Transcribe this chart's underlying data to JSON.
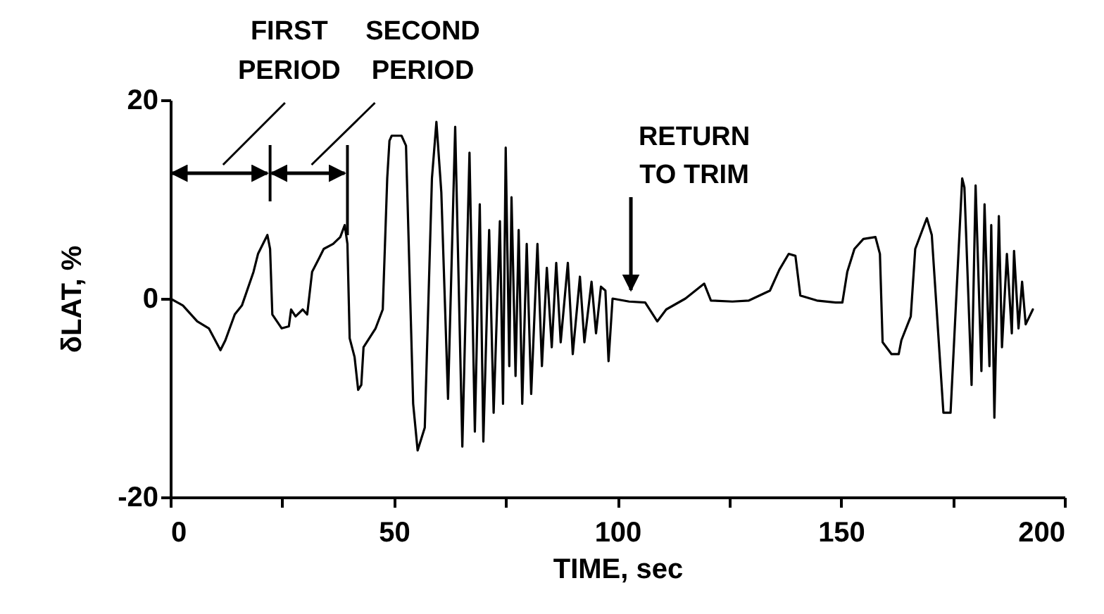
{
  "chart_data": {
    "type": "line",
    "xlabel": "TIME, sec",
    "ylabel": "δLAT, %",
    "xlim": [
      0,
      200
    ],
    "ylim": [
      -20,
      20
    ],
    "xticks": [
      0,
      {
        "value": 25,
        "label": null
      },
      50,
      {
        "value": 75,
        "label": null
      },
      100,
      {
        "value": 125,
        "label": null
      },
      150,
      {
        "value": 175,
        "label": null
      },
      200
    ],
    "yticks": [
      -20,
      0,
      20
    ],
    "grid": false,
    "legend": false,
    "marker": "none",
    "line_style": "solid",
    "ref_lines": [
      {
        "axis": "x",
        "value": 22.3,
        "label": "FIRST PERIOD"
      },
      {
        "axis": "x",
        "value": 39.6,
        "label": "SECOND PERIOD"
      }
    ],
    "annotations": [
      {
        "text": "RETURN TO TRIM",
        "x": 103,
        "y": 0
      }
    ],
    "series": [
      {
        "color": "#000000",
        "x": [
          0,
          2.8,
          6,
          8.6,
          11.2,
          12.3,
          14.4,
          16,
          18.6,
          19.6,
          21.7,
          22.3,
          22.8,
          24.9,
          26.5,
          27,
          28,
          29.6,
          30.6,
          31.7,
          33.3,
          34.3,
          36.4,
          38,
          39,
          39.6,
          40.1,
          41.2,
          42,
          42.7,
          43.2,
          45.9,
          47.5,
          48.5,
          49,
          49.5,
          51.7,
          52.7,
          54.3,
          55.3,
          56.9,
          58.5,
          59.5,
          60.6,
          62.1,
          63.7,
          65.3,
          66.9,
          68.1,
          69.2,
          70,
          71.3,
          72.3,
          73.7,
          74.4,
          75,
          75.8,
          76.3,
          77.2,
          77.9,
          78.7,
          79.7,
          80.7,
          82.1,
          83.1,
          84.2,
          85.3,
          86.3,
          87.3,
          88.9,
          90,
          91.6,
          92.6,
          94.2,
          95.2,
          96.3,
          97.3,
          98,
          98.9,
          102.6,
          106.2,
          108.9,
          110.9,
          115.2,
          119.4,
          120.9,
          125.7,
          129.4,
          134.1,
          136.2,
          138.3,
          139.8,
          140.9,
          144.6,
          148.8,
          150.3,
          151.4,
          153,
          155,
          157.7,
          158.7,
          159.3,
          161.3,
          162.9,
          163.5,
          165.6,
          166.6,
          169.2,
          170.3,
          172.9,
          174.5,
          177.1,
          177.6,
          179.2,
          180.1,
          181.4,
          182.1,
          183.2,
          183.6,
          184.3,
          185.3,
          186,
          187.1,
          188.2,
          188.7,
          189.7,
          190.5,
          191.3,
          192.9
        ],
        "values": [
          0,
          -0.7,
          -2.3,
          -3,
          -5.2,
          -4.2,
          -1.6,
          -0.7,
          2.7,
          4.5,
          6.4,
          5,
          -1.6,
          -3,
          -2.8,
          -1.1,
          -1.8,
          -1.1,
          -1.6,
          2.7,
          4.1,
          5,
          5.5,
          6.2,
          7.4,
          5.5,
          -4,
          -5.9,
          -9.2,
          -8.7,
          -4.9,
          -3,
          -1.1,
          12.1,
          15.9,
          16.4,
          16.4,
          15.4,
          -10.6,
          -15.3,
          -13,
          12.1,
          17.8,
          10.7,
          -10.1,
          17.3,
          -14.9,
          14.7,
          -13.4,
          9.5,
          -14.4,
          6.9,
          -11.5,
          7.8,
          -10.6,
          15.2,
          -6.8,
          10.2,
          -7.8,
          6.9,
          -10.6,
          5.5,
          -9.6,
          5.5,
          -6.8,
          3.1,
          -4.9,
          3.6,
          -4.4,
          3.6,
          -5.6,
          2.2,
          -4.4,
          1.7,
          -3.5,
          1.2,
          0.8,
          -6.3,
          0,
          -0.3,
          -0.4,
          -2.3,
          -1.1,
          0,
          1.5,
          -0.2,
          -0.3,
          -0.2,
          0.8,
          2.9,
          4.5,
          4.3,
          0.3,
          -0.2,
          -0.4,
          -0.4,
          2.7,
          5,
          6,
          6.2,
          4.5,
          -4.4,
          -5.6,
          -5.6,
          -4.2,
          -1.8,
          5,
          8.1,
          6.4,
          -11.5,
          -11.5,
          12.1,
          11.2,
          -8.7,
          11.4,
          -7.3,
          9.5,
          -6.8,
          7.4,
          -12,
          8.3,
          -4.9,
          4.5,
          -3.5,
          4.8,
          -3,
          1.7,
          -2.6,
          -1.1
        ]
      }
    ]
  }
}
